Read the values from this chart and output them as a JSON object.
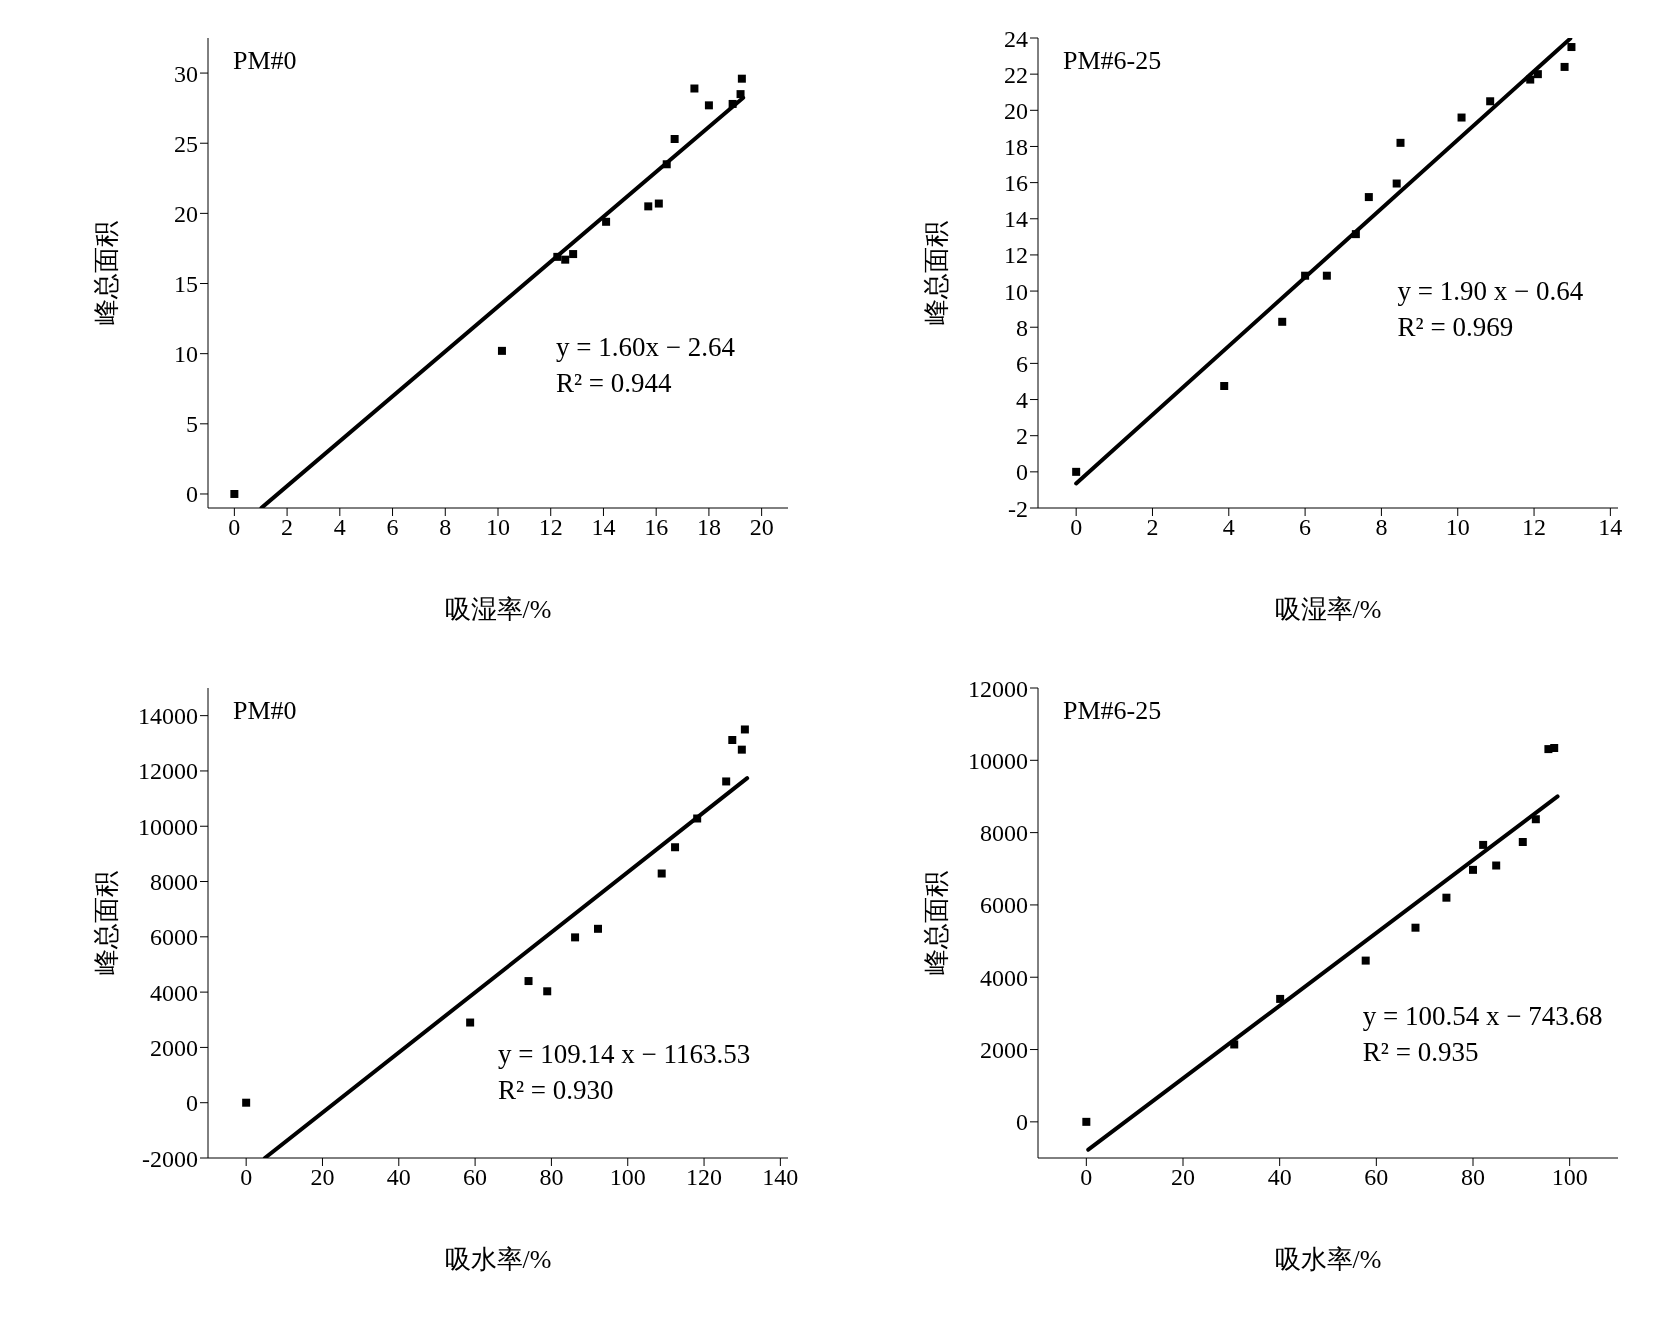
{
  "chart_data": [
    {
      "type": "scatter",
      "title": "PM#0",
      "xlabel": "吸湿率/%",
      "ylabel": "峰总面积",
      "xlim": [
        -1,
        21
      ],
      "xticks": [
        0,
        2,
        4,
        6,
        8,
        10,
        12,
        14,
        16,
        18,
        20
      ],
      "ylim": [
        -1,
        32.5
      ],
      "yticks": [
        0,
        5,
        10,
        15,
        20,
        25,
        30
      ],
      "annotations": [
        "y = 1.60x − 2.64",
        "R² = 0.944"
      ],
      "series": [
        {
          "marker": "square",
          "color": "#000000",
          "x": [
            0,
            10.15,
            12.25,
            12.55,
            12.85,
            14.1,
            15.7,
            16.1,
            16.4,
            16.7,
            17.45,
            18.0,
            18.9,
            19.2,
            19.25
          ],
          "values": [
            0,
            10.2,
            16.9,
            16.7,
            17.1,
            19.4,
            20.5,
            20.7,
            23.5,
            25.3,
            28.9,
            27.7,
            27.8,
            28.5,
            29.6
          ]
        },
        {
          "type": "line",
          "color": "#000000",
          "x": [
            1.03,
            19.3
          ],
          "values": [
            -0.99,
            28.24
          ]
        }
      ]
    },
    {
      "type": "scatter",
      "title": "PM#6-25",
      "xlabel": "吸湿率/%",
      "ylabel": "峰总面积",
      "xlim": [
        -1,
        14.2
      ],
      "xticks": [
        0,
        2,
        4,
        6,
        8,
        10,
        12,
        14
      ],
      "ylim": [
        -2,
        24
      ],
      "yticks": [
        -2,
        0,
        2,
        4,
        6,
        8,
        10,
        12,
        14,
        16,
        18,
        20,
        22,
        24
      ],
      "annotations": [
        "y = 1.90 x − 0.64",
        "R² = 0.969"
      ],
      "series": [
        {
          "marker": "square",
          "color": "#000000",
          "x": [
            0,
            3.88,
            5.4,
            6.0,
            6.57,
            7.33,
            7.67,
            8.4,
            8.5,
            10.1,
            10.85,
            11.9,
            12.1,
            12.8,
            12.98
          ],
          "values": [
            0,
            4.75,
            8.3,
            10.85,
            10.85,
            13.15,
            15.2,
            15.95,
            18.2,
            19.6,
            20.5,
            21.7,
            22.0,
            22.4,
            23.5
          ]
        },
        {
          "type": "line",
          "color": "#000000",
          "x": [
            0,
            12.95
          ],
          "values": [
            -0.64,
            23.97
          ]
        }
      ]
    },
    {
      "type": "scatter",
      "title": "PM#0",
      "xlabel": "吸水率/%",
      "ylabel": "峰总面积",
      "xlim": [
        -10,
        142
      ],
      "xticks": [
        0,
        20,
        40,
        60,
        80,
        100,
        120,
        140
      ],
      "ylim": [
        -2000,
        15000
      ],
      "yticks": [
        -2000,
        0,
        2000,
        4000,
        6000,
        8000,
        10000,
        12000,
        14000
      ],
      "annotations": [
        "y = 109.14 x − 1163.53",
        "R² = 0.930"
      ],
      "series": [
        {
          "marker": "square",
          "color": "#000000",
          "x": [
            0,
            58.7,
            74,
            78.9,
            86.2,
            92.2,
            108.9,
            112.4,
            118.2,
            125.8,
            127.4,
            129.9,
            130.7
          ],
          "values": [
            0,
            2900,
            4400,
            4030,
            5980,
            6290,
            8290,
            9240,
            10280,
            11620,
            13120,
            12770,
            13500
          ]
        },
        {
          "type": "line",
          "color": "#000000",
          "x": [
            4.9,
            131.3
          ],
          "values": [
            -2000,
            11740
          ]
        }
      ]
    },
    {
      "type": "scatter",
      "title": "PM#6-25",
      "xlabel": "吸水率/%",
      "ylabel": "峰总面积",
      "xlim": [
        -10,
        110
      ],
      "xticks": [
        0,
        20,
        40,
        60,
        80,
        100
      ],
      "ylim": [
        -1000,
        12000
      ],
      "yticks": [
        0,
        2000,
        4000,
        6000,
        8000,
        10000,
        12000
      ],
      "annotations": [
        "y = 100.54 x − 743.68",
        "R² = 0.935"
      ],
      "series": [
        {
          "marker": "square",
          "color": "#000000",
          "x": [
            0,
            30.6,
            40.1,
            57.8,
            68.1,
            74.5,
            80,
            82.1,
            84.8,
            90.3,
            93,
            95.6,
            96.8
          ],
          "values": [
            0,
            2140,
            3400,
            4460,
            5370,
            6200,
            6970,
            7660,
            7090,
            7740,
            8370,
            10310,
            10340
          ]
        },
        {
          "type": "line",
          "color": "#000000",
          "x": [
            0.4,
            97.5
          ],
          "values": [
            -770,
            9000
          ]
        }
      ]
    }
  ]
}
